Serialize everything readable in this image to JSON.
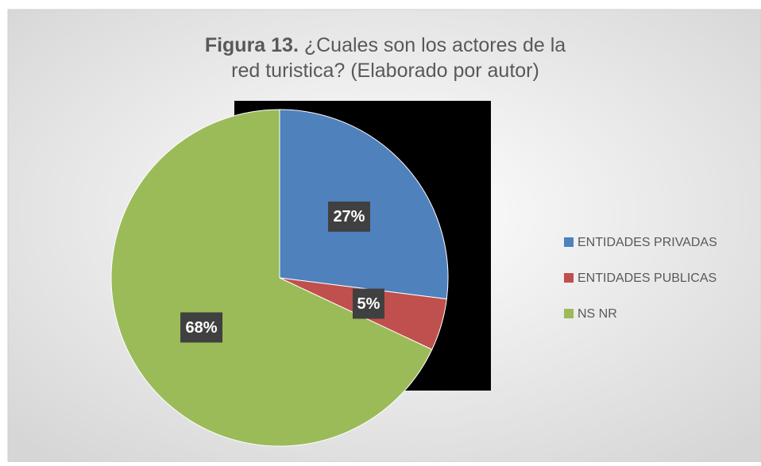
{
  "chart_data": {
    "type": "pie",
    "title_prefix": "Figura 13.",
    "title": "¿Cuales son los actores de la red turistica? (Elaborado por autor)",
    "categories": [
      "ENTIDADES PRIVADAS",
      "ENTIDADES PUBLICAS",
      "NS NR"
    ],
    "values": [
      27,
      5,
      68
    ],
    "value_labels": [
      "27%",
      "5%",
      "68%"
    ],
    "colors": [
      "#4f81bd",
      "#c0504d",
      "#9bbb59"
    ],
    "legend": "right"
  }
}
